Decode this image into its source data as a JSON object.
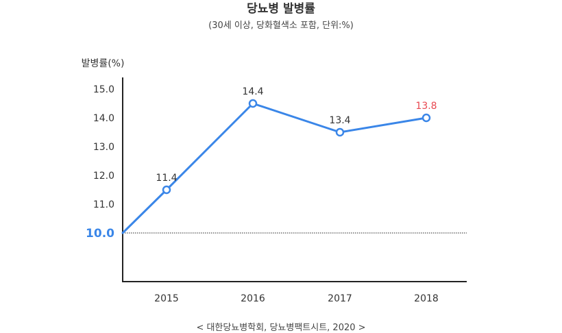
{
  "header": {
    "title": "당뇨병 발병률",
    "subtitle": "(30세 이상, 당화혈색소 포함, 단위:%)"
  },
  "footer": {
    "source": "< 대한당뇨병학회, 당뇨병팩트시트, 2020 >"
  },
  "colors": {
    "line": "#3a86e8",
    "highlight_label": "#e8474f",
    "baseline_label": "#3a86e8",
    "axis": "#222222",
    "text": "#333333"
  },
  "chart_data": {
    "type": "line",
    "title": "당뇨병 발병률",
    "subtitle": "(30세 이상, 당화혈색소 포함, 단위:%)",
    "ylabel": "발병률(%)",
    "xlabel": "",
    "categories": [
      "2015",
      "2016",
      "2017",
      "2018"
    ],
    "series": [
      {
        "values": [
          11.4,
          14.4,
          13.4,
          13.8
        ],
        "labels": [
          "11.4",
          "14.4",
          "13.4",
          "13.8"
        ]
      }
    ],
    "plot_values": [
      11.5,
      14.5,
      13.5,
      14.0
    ],
    "line_start_value": 10.0,
    "highlight_label_index": 3,
    "yticks": [
      "15.0",
      "14.0",
      "13.0",
      "12.0",
      "11.0"
    ],
    "ytick_values": [
      15.0,
      14.0,
      13.0,
      12.0,
      11.0
    ],
    "baseline": {
      "value": 10.0,
      "label": "10.0",
      "style": "dotted"
    },
    "ylim": [
      8.2,
      15.5
    ],
    "grid": false,
    "legend": "none",
    "markers": "hollow-circle"
  }
}
